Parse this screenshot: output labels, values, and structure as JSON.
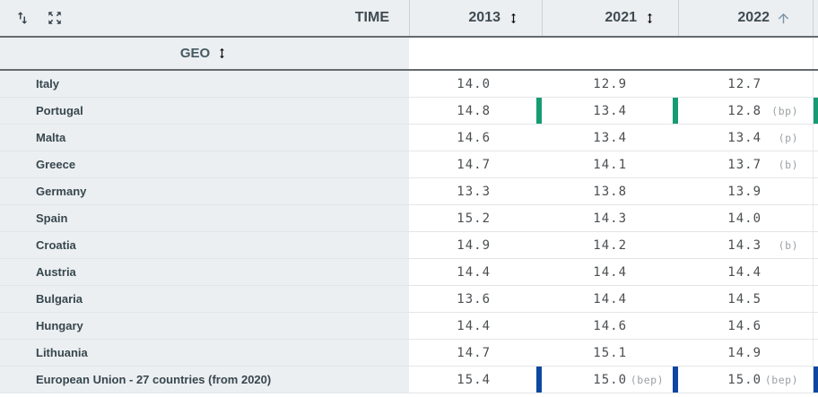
{
  "header": {
    "time_label": "TIME",
    "geo_label": "GEO",
    "toolbar": [
      {
        "icon": "swap-vert-icon"
      },
      {
        "icon": "expand-icon"
      }
    ],
    "geo_sort_icon": "sort-both-icon",
    "columns": [
      {
        "year": "2013",
        "sort_icon": "sort-both-icon",
        "sort_state": "none"
      },
      {
        "year": "2021",
        "sort_icon": "sort-both-icon",
        "sort_state": "none"
      },
      {
        "year": "2022",
        "sort_icon": "arrow-up-icon",
        "sort_state": "ascending"
      }
    ]
  },
  "rows": [
    {
      "geo": "Italy",
      "cells": [
        {
          "v": "14.0"
        },
        {
          "v": "12.9"
        },
        {
          "v": "12.7"
        }
      ]
    },
    {
      "geo": "Portugal",
      "bar_color": "#169b72",
      "cells": [
        {
          "v": "14.8",
          "bar": true
        },
        {
          "v": "13.4",
          "bar": true
        },
        {
          "v": "12.8",
          "flag": "(bp)",
          "bar": true
        }
      ]
    },
    {
      "geo": "Malta",
      "cells": [
        {
          "v": "14.6"
        },
        {
          "v": "13.4"
        },
        {
          "v": "13.4",
          "flag": "(p)"
        }
      ]
    },
    {
      "geo": "Greece",
      "cells": [
        {
          "v": "14.7"
        },
        {
          "v": "14.1"
        },
        {
          "v": "13.7",
          "flag": "(b)"
        }
      ]
    },
    {
      "geo": "Germany",
      "cells": [
        {
          "v": "13.3"
        },
        {
          "v": "13.8"
        },
        {
          "v": "13.9"
        }
      ]
    },
    {
      "geo": "Spain",
      "cells": [
        {
          "v": "15.2"
        },
        {
          "v": "14.3"
        },
        {
          "v": "14.0"
        }
      ]
    },
    {
      "geo": "Croatia",
      "cells": [
        {
          "v": "14.9"
        },
        {
          "v": "14.2"
        },
        {
          "v": "14.3",
          "flag": "(b)"
        }
      ]
    },
    {
      "geo": "Austria",
      "cells": [
        {
          "v": "14.4"
        },
        {
          "v": "14.4"
        },
        {
          "v": "14.4"
        }
      ]
    },
    {
      "geo": "Bulgaria",
      "cells": [
        {
          "v": "13.6"
        },
        {
          "v": "14.4"
        },
        {
          "v": "14.5"
        }
      ]
    },
    {
      "geo": "Hungary",
      "cells": [
        {
          "v": "14.4"
        },
        {
          "v": "14.6"
        },
        {
          "v": "14.6"
        }
      ]
    },
    {
      "geo": "Lithuania",
      "cells": [
        {
          "v": "14.7"
        },
        {
          "v": "15.1"
        },
        {
          "v": "14.9"
        }
      ]
    },
    {
      "geo": "European Union - 27 countries (from 2020)",
      "bar_color": "#0d47a1",
      "cells": [
        {
          "v": "15.4",
          "bar": true
        },
        {
          "v": "15.0",
          "flag": "(bep)",
          "bar": true
        },
        {
          "v": "15.0",
          "flag": "(bep)",
          "bar": true
        }
      ]
    }
  ],
  "colors": {
    "header_bg": "#eceff1",
    "dark_divider": "#646a6e",
    "row_divider": "#e3e6e8",
    "break_bar_green": "#169b72",
    "break_bar_navy": "#0d47a1",
    "active_sort_arrow": "#7b95a7",
    "flag_text": "#9aa0a4"
  }
}
